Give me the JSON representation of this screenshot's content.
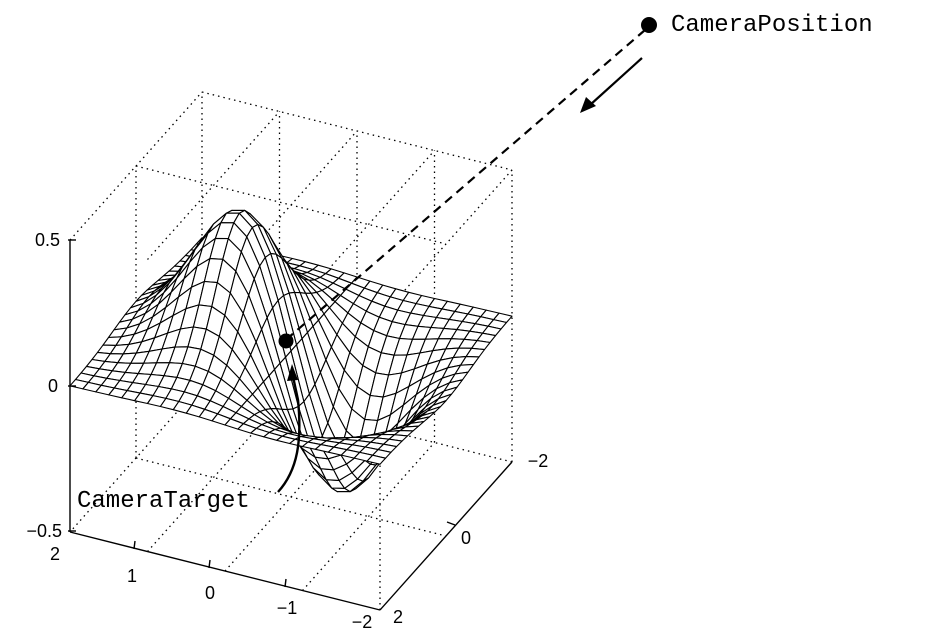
{
  "figure": {
    "surface": "z = x * exp(-x^2 - y^2)",
    "z_axis_ticks": [
      "0.5",
      "0",
      "−0.5"
    ],
    "x_axis_ticks": [
      "2",
      "1",
      "0",
      "−1",
      "−2"
    ],
    "y_axis_ticks": [
      "−2",
      "0",
      "2"
    ],
    "camera_position_label": "CameraPosition",
    "camera_target_label": "CameraTarget",
    "colors": {
      "ink": "#000000",
      "background": "#ffffff"
    }
  }
}
